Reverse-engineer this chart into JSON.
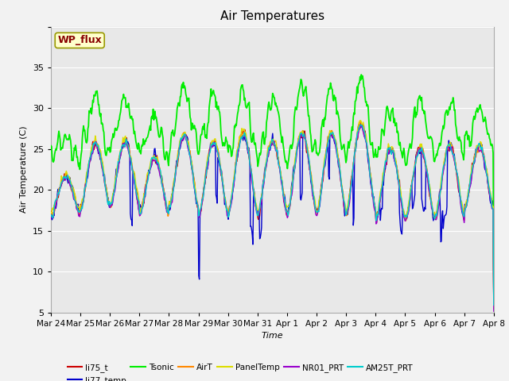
{
  "title": "Air Temperatures",
  "xlabel": "Time",
  "ylabel": "Air Temperature (C)",
  "ylim": [
    0,
    35
  ],
  "yticks": [
    0,
    5,
    10,
    15,
    20,
    25,
    30,
    35
  ],
  "annotation_text": "WP_flux",
  "annotation_color": "#880000",
  "annotation_bg": "#ffffcc",
  "annotation_edge": "#999900",
  "bg_color": "#e8e8e8",
  "fig_bg_color": "#f2f2f2",
  "tick_labels": [
    "Mar 24",
    "Mar 25",
    "Mar 26",
    "Mar 27",
    "Mar 28",
    "Mar 29",
    "Mar 30",
    "Mar 31",
    "Apr 1",
    "Apr 2",
    "Apr 3",
    "Apr 4",
    "Apr 5",
    "Apr 6",
    "Apr 7",
    "Apr 8"
  ],
  "legend_entries": [
    {
      "label": "li75_t",
      "color": "#cc0000"
    },
    {
      "label": "li77_temp",
      "color": "#0000cc"
    },
    {
      "label": "Tsonic",
      "color": "#00ee00"
    },
    {
      "label": "AirT",
      "color": "#ff8800"
    },
    {
      "label": "PanelTemp",
      "color": "#dddd00"
    },
    {
      "label": "NR01_PRT",
      "color": "#9900cc"
    },
    {
      "label": "AM25T_PRT",
      "color": "#00cccc"
    }
  ]
}
